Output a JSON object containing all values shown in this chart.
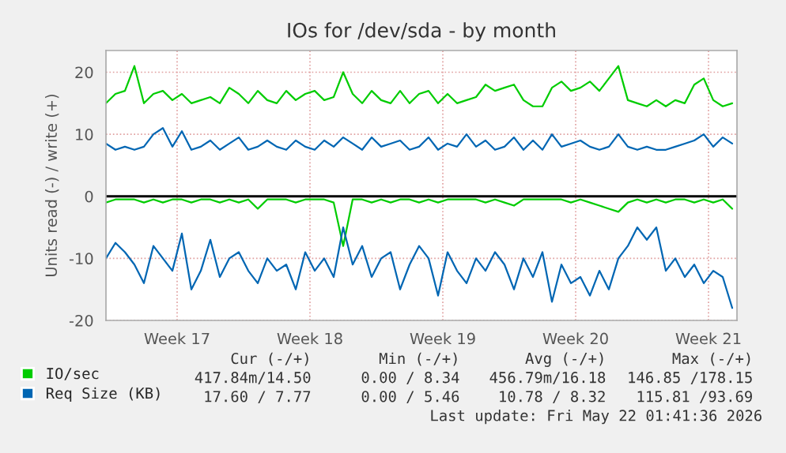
{
  "chart_data": {
    "type": "line",
    "title": "IOs for /dev/sda - by month",
    "ylabel": "Units read (-) / write (+)",
    "x": [
      "2026-04-19T18:00",
      "2026-04-20T06:00",
      "2026-04-20T18:00",
      "2026-04-21T06:00",
      "2026-04-21T18:00",
      "2026-04-22T06:00",
      "2026-04-22T18:00",
      "2026-04-23T06:00",
      "2026-04-23T18:00",
      "2026-04-24T06:00",
      "2026-04-24T18:00",
      "2026-04-25T06:00",
      "2026-04-25T18:00",
      "2026-04-26T06:00",
      "2026-04-26T18:00",
      "2026-04-27T06:00",
      "2026-04-27T18:00",
      "2026-04-28T06:00",
      "2026-04-28T18:00",
      "2026-04-29T06:00",
      "2026-04-29T18:00",
      "2026-04-30T06:00",
      "2026-04-30T18:00",
      "2026-05-01T06:00",
      "2026-05-01T18:00",
      "2026-05-02T06:00",
      "2026-05-02T18:00",
      "2026-05-03T06:00",
      "2026-05-03T18:00",
      "2026-05-04T06:00",
      "2026-05-04T18:00",
      "2026-05-05T06:00",
      "2026-05-05T18:00",
      "2026-05-06T06:00",
      "2026-05-06T18:00",
      "2026-05-07T06:00",
      "2026-05-07T18:00",
      "2026-05-08T06:00",
      "2026-05-08T18:00",
      "2026-05-09T06:00",
      "2026-05-09T18:00",
      "2026-05-10T06:00",
      "2026-05-10T18:00",
      "2026-05-11T06:00",
      "2026-05-11T18:00",
      "2026-05-12T06:00",
      "2026-05-12T18:00",
      "2026-05-13T06:00",
      "2026-05-13T18:00",
      "2026-05-14T06:00",
      "2026-05-14T18:00",
      "2026-05-15T06:00",
      "2026-05-15T18:00",
      "2026-05-16T06:00",
      "2026-05-16T18:00",
      "2026-05-17T06:00",
      "2026-05-17T18:00",
      "2026-05-18T06:00",
      "2026-05-18T18:00",
      "2026-05-19T06:00",
      "2026-05-19T18:00",
      "2026-05-20T06:00",
      "2026-05-20T18:00",
      "2026-05-21T06:00",
      "2026-05-21T18:00",
      "2026-05-22T06:00",
      "2026-05-22T18:00"
    ],
    "xlim": [
      "2026-04-19T18:00",
      "2026-05-23T00:00"
    ],
    "xticks": [
      {
        "value": "2026-04-23T12:00",
        "label": "Week 17"
      },
      {
        "value": "2026-04-30T12:00",
        "label": "Week 18"
      },
      {
        "value": "2026-05-07T12:00",
        "label": "Week 19"
      },
      {
        "value": "2026-05-14T12:00",
        "label": "Week 20"
      },
      {
        "value": "2026-05-21T12:00",
        "label": "Week 21"
      }
    ],
    "ylim": [
      -20,
      23.5
    ],
    "yticks": [
      -20,
      -10,
      0,
      10,
      20
    ],
    "grid": true,
    "legend": "bottom left",
    "marker": "none",
    "line_style": "solid",
    "ref_lines": [
      {
        "axis": "y",
        "value": 0,
        "color": "#000000"
      }
    ],
    "series": [
      {
        "name": "IO/sec",
        "color": "#00cc00",
        "values": [
          15,
          16.5,
          17,
          21,
          15,
          16.5,
          17,
          15.5,
          16.5,
          15,
          15.5,
          16,
          15,
          17.5,
          16.5,
          15,
          17,
          15.5,
          15,
          17,
          15.5,
          16.5,
          17,
          15.5,
          16,
          20,
          16.5,
          15,
          17,
          15.5,
          15,
          17,
          15,
          16.5,
          17,
          15,
          16.5,
          15,
          15.5,
          16,
          18,
          17,
          17.5,
          18,
          15.5,
          14.5,
          14.5,
          17.5,
          18.5,
          17,
          17.5,
          18.5,
          17,
          19,
          21,
          15.5,
          15,
          14.5,
          15.5,
          14.5,
          15.5,
          15,
          18,
          19,
          15.5,
          14.5,
          15
        ]
      },
      {
        "color": "#00cc00",
        "values": [
          -1,
          -0.5,
          -0.5,
          -0.5,
          -1,
          -0.5,
          -1,
          -0.5,
          -0.5,
          -1,
          -0.5,
          -0.5,
          -1,
          -0.5,
          -1,
          -0.5,
          -2,
          -0.5,
          -0.5,
          -0.5,
          -1,
          -0.5,
          -0.5,
          -0.5,
          -1,
          -8,
          -0.5,
          -0.5,
          -1,
          -0.5,
          -1,
          -0.5,
          -0.5,
          -1,
          -0.5,
          -1,
          -0.5,
          -0.5,
          -0.5,
          -0.5,
          -1,
          -0.5,
          -1,
          -1.5,
          -0.5,
          -0.5,
          -0.5,
          -0.5,
          -0.5,
          -1,
          -0.5,
          -1,
          -1.5,
          -2,
          -2.5,
          -1,
          -0.5,
          -1,
          -0.5,
          -1,
          -0.5,
          -0.5,
          -1,
          -0.5,
          -1,
          -0.5,
          -2
        ]
      },
      {
        "name": "Req Size (KB)",
        "color": "#0066b3",
        "values": [
          8.5,
          7.5,
          8,
          7.5,
          8,
          10,
          11,
          8,
          10.5,
          7.5,
          8,
          9,
          7.5,
          8.5,
          9.5,
          7.5,
          8,
          9,
          8,
          7.5,
          9,
          8,
          7.5,
          9,
          8,
          9.5,
          8.5,
          7.5,
          9.5,
          8,
          8.5,
          9,
          7.5,
          8,
          9.5,
          7.5,
          8.5,
          8,
          10,
          8,
          9,
          7.5,
          8,
          9.5,
          7.5,
          9,
          7.5,
          10,
          8,
          8.5,
          9,
          8,
          7.5,
          8,
          10,
          8,
          7.5,
          8,
          7.5,
          7.5,
          8,
          8.5,
          9,
          10,
          8,
          9.5,
          8.5
        ]
      },
      {
        "color": "#0066b3",
        "values": [
          -10,
          -7.5,
          -9,
          -11,
          -14,
          -8,
          -10,
          -12,
          -6,
          -15,
          -12,
          -7,
          -13,
          -10,
          -9,
          -12,
          -14,
          -10,
          -12,
          -11,
          -15,
          -9,
          -12,
          -10,
          -13,
          -5,
          -11,
          -8,
          -13,
          -10,
          -9,
          -15,
          -11,
          -8,
          -10,
          -16,
          -9,
          -12,
          -14,
          -10,
          -12,
          -9,
          -11,
          -15,
          -10,
          -13,
          -9,
          -17,
          -11,
          -14,
          -13,
          -16,
          -12,
          -15,
          -10,
          -8,
          -5,
          -7,
          -5,
          -12,
          -10,
          -13,
          -11,
          -14,
          -12,
          -13,
          -18
        ]
      }
    ],
    "annotations": [
      "Cur (-/+)",
      "Min (-/+)",
      "Avg (-/+)",
      "Max (-/+)",
      "417.84m/14.50",
      "0.00 / 8.34",
      "456.79m/16.18",
      "146.85 /178.15",
      "17.60 / 7.77",
      "0.00 / 5.46",
      "10.78 / 8.32",
      "115.81 /93.69",
      "Last update: Fri May 22 01:41:36 2026"
    ]
  }
}
